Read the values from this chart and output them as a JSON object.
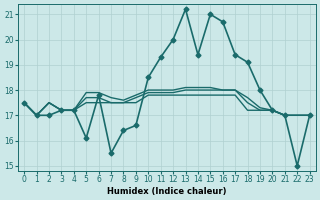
{
  "xlabel": "Humidex (Indice chaleur)",
  "ylabel": "",
  "background_color": "#cce8e8",
  "grid_color": "#b0d0d0",
  "line_color": "#1a6b6b",
  "xlim": [
    -0.5,
    23.5
  ],
  "ylim": [
    14.8,
    21.4
  ],
  "yticks": [
    15,
    16,
    17,
    18,
    19,
    20,
    21
  ],
  "xticks": [
    0,
    1,
    2,
    3,
    4,
    5,
    6,
    7,
    8,
    9,
    10,
    11,
    12,
    13,
    14,
    15,
    16,
    17,
    18,
    19,
    20,
    21,
    22,
    23
  ],
  "series": [
    {
      "x": [
        0,
        1,
        2,
        3,
        4,
        5,
        6,
        7,
        8,
        9,
        10,
        11,
        12,
        13,
        14,
        15,
        16,
        17,
        18,
        19,
        20,
        21,
        22,
        23
      ],
      "y": [
        17.5,
        17.0,
        17.0,
        17.2,
        17.2,
        16.1,
        17.8,
        15.5,
        16.4,
        16.6,
        18.5,
        19.3,
        20.0,
        21.2,
        19.4,
        21.0,
        20.7,
        19.4,
        19.1,
        18.0,
        17.2,
        17.0,
        15.0,
        17.0
      ],
      "marker": "D",
      "markersize": 2.5,
      "linewidth": 1.2,
      "has_marker": true
    },
    {
      "x": [
        0,
        1,
        2,
        3,
        4,
        5,
        6,
        7,
        8,
        9,
        10,
        11,
        12,
        13,
        14,
        15,
        16,
        17,
        18,
        19,
        20,
        21,
        22,
        23
      ],
      "y": [
        17.5,
        17.0,
        17.5,
        17.2,
        17.2,
        17.5,
        17.5,
        17.5,
        17.5,
        17.5,
        17.8,
        17.8,
        17.8,
        17.8,
        17.8,
        17.8,
        17.8,
        17.8,
        17.2,
        17.2,
        17.2,
        17.0,
        17.0,
        17.0
      ],
      "marker": "none",
      "markersize": 0,
      "linewidth": 1.0,
      "has_marker": false
    },
    {
      "x": [
        0,
        1,
        2,
        3,
        4,
        5,
        6,
        7,
        8,
        9,
        10,
        11,
        12,
        13,
        14,
        15,
        16,
        17,
        18,
        19,
        20,
        21,
        22,
        23
      ],
      "y": [
        17.5,
        17.0,
        17.5,
        17.2,
        17.2,
        17.7,
        17.7,
        17.5,
        17.5,
        17.7,
        17.9,
        17.9,
        17.9,
        18.0,
        18.0,
        18.0,
        18.0,
        18.0,
        17.5,
        17.2,
        17.2,
        17.0,
        17.0,
        17.0
      ],
      "marker": "none",
      "markersize": 0,
      "linewidth": 1.0,
      "has_marker": false
    },
    {
      "x": [
        0,
        1,
        2,
        3,
        4,
        5,
        6,
        7,
        8,
        9,
        10,
        11,
        12,
        13,
        14,
        15,
        16,
        17,
        18,
        19,
        20,
        21,
        22,
        23
      ],
      "y": [
        17.5,
        17.0,
        17.5,
        17.2,
        17.2,
        17.9,
        17.9,
        17.7,
        17.6,
        17.8,
        18.0,
        18.0,
        18.0,
        18.1,
        18.1,
        18.1,
        18.0,
        18.0,
        17.7,
        17.3,
        17.2,
        17.0,
        17.0,
        17.0
      ],
      "marker": "none",
      "markersize": 0,
      "linewidth": 1.0,
      "has_marker": false
    }
  ]
}
